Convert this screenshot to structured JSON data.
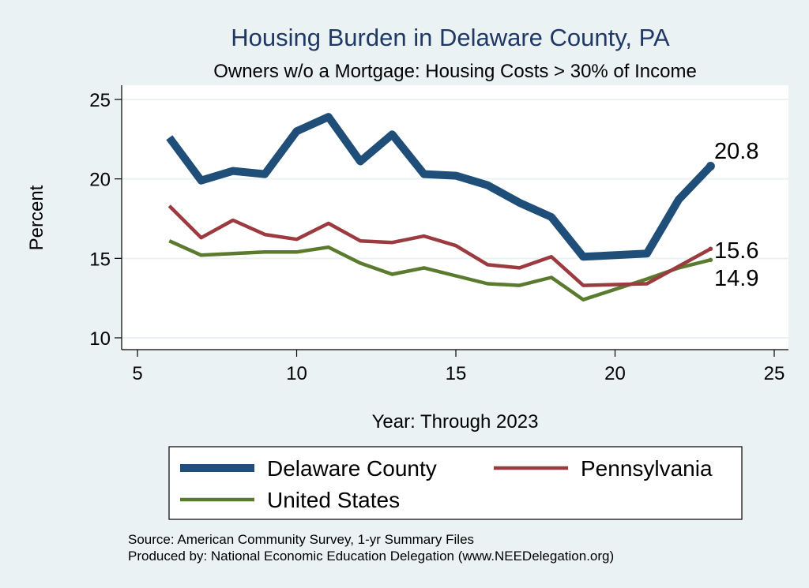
{
  "chart_data": {
    "type": "line",
    "title": "Housing Burden in Delaware County, PA",
    "subtitle": "Owners w/o a Mortgage: Housing Costs > 30% of Income",
    "xlabel": "Year: Through 2023",
    "ylabel": "Percent",
    "xlim": [
      5,
      25
    ],
    "ylim": [
      10,
      25
    ],
    "xticks": [
      5,
      10,
      15,
      20,
      25
    ],
    "yticks": [
      10,
      15,
      20,
      25
    ],
    "x": [
      6,
      7,
      8,
      9,
      10,
      11,
      12,
      13,
      14,
      15,
      16,
      17,
      18,
      19,
      21,
      22,
      23
    ],
    "series": [
      {
        "name": "Delaware County",
        "color": "#1f4e79",
        "values": [
          22.6,
          19.9,
          20.5,
          20.3,
          23.0,
          23.9,
          21.1,
          22.8,
          20.3,
          20.2,
          19.6,
          18.5,
          17.6,
          15.1,
          15.3,
          18.7,
          20.8
        ],
        "end_label": "20.8"
      },
      {
        "name": "Pennsylvania",
        "color": "#9b3a3f",
        "values": [
          18.3,
          16.3,
          17.4,
          16.5,
          16.2,
          17.2,
          16.1,
          16.0,
          16.4,
          15.8,
          14.6,
          14.4,
          15.1,
          13.3,
          13.4,
          14.5,
          15.6
        ],
        "end_label": "15.6"
      },
      {
        "name": "United States",
        "color": "#5a7a2e",
        "values": [
          16.1,
          15.2,
          15.3,
          15.4,
          15.4,
          15.7,
          14.7,
          14.0,
          14.4,
          13.9,
          13.4,
          13.3,
          13.8,
          12.4,
          13.7,
          14.4,
          14.9
        ],
        "end_label": "14.9"
      }
    ],
    "grid": true,
    "legend": "bottom"
  },
  "notes": {
    "source": "Source: American Community Survey, 1-yr Summary Files",
    "produced_by": "Produced by: National Economic Education Delegation (www.NEEDelegation.org)"
  },
  "colors": {
    "background": "#eaf2f3",
    "plot_background": "#ffffff",
    "title": "#1f3864",
    "grid": "#eaf2f3"
  }
}
